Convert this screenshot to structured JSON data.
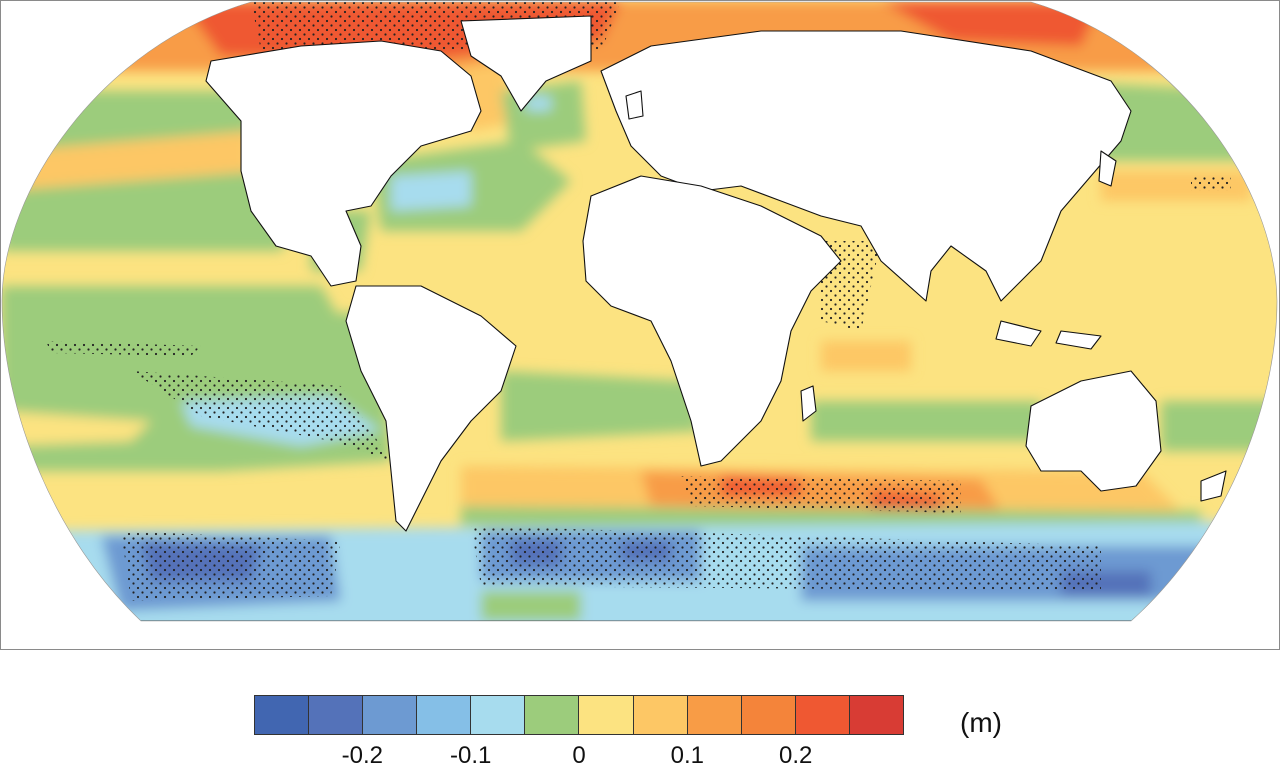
{
  "map": {
    "projection": "robinson",
    "central_meridian": 0,
    "land_color": "#ffffff",
    "coastline_color": "#111111",
    "stippling": "black dots mark regions of model agreement",
    "dominant_field_by_region": [
      {
        "region": "Arctic Ocean",
        "level": "0.2 to 0.3"
      },
      {
        "region": "North Atlantic subpolar gyre",
        "level": "0 to -0.1"
      },
      {
        "region": "Gulf Stream extension",
        "level": "-0.1 to -0.15"
      },
      {
        "region": "Tropical Pacific",
        "level": "0 to 0.05"
      },
      {
        "region": "Subtropical North Pacific",
        "level": "0.05 to 0.1"
      },
      {
        "region": "South Pacific",
        "level": "-0.05 to 0"
      },
      {
        "region": "Indian Ocean",
        "level": "0 to 0.1"
      },
      {
        "region": "Southern Ocean 40S-50S",
        "level": "0.1 to 0.25"
      },
      {
        "region": "Southern Ocean near Antarctica",
        "level": "-0.1 to -0.25"
      }
    ]
  },
  "colorbar": {
    "unit": "(m)",
    "colors": [
      "#4166b1",
      "#5472b9",
      "#6d9ad2",
      "#85bfe7",
      "#a7dcee",
      "#9ccc7c",
      "#fce381",
      "#fdc765",
      "#f89c46",
      "#f4843a",
      "#ef5832",
      "#d83c34"
    ],
    "ticks": [
      {
        "label": "-0.2",
        "index": 1
      },
      {
        "label": "-0.1",
        "index": 3
      },
      {
        "label": "0",
        "index": 5
      },
      {
        "label": "0.1",
        "index": 7
      },
      {
        "label": "0.2",
        "index": 9
      }
    ]
  }
}
